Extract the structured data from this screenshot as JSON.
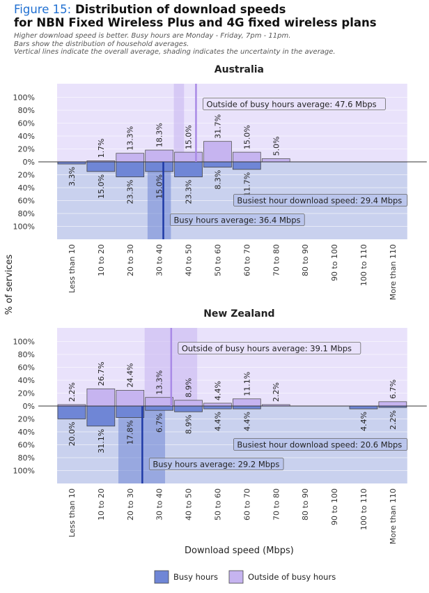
{
  "header": {
    "figure_label": "Figure 15:",
    "title_line1": "Distribution of download speeds",
    "title_line2": "for NBN Fixed Wireless Plus and 4G fixed wireless plans",
    "subtitle_lines": [
      "Higher download speed is better. Busy hours are Monday - Friday, 7pm - 11pm.",
      "Bars show the distribution of household averages.",
      "Vertical lines indicate the overall average, shading indicates the uncertainty in the average."
    ]
  },
  "colors": {
    "busy": "#6f86d6",
    "outside": "#c6b4f0",
    "busy_shade": "#c9d1ee",
    "outside_shade": "#e9e2fb",
    "busy_line": "#1f3aa6",
    "outside_line": "#a98ae6"
  },
  "chart_data": {
    "type": "bar",
    "xlabel": "Download speed (Mbps)",
    "ylabel": "% of services",
    "categories": [
      "Less than 10",
      "10 to 20",
      "20 to 30",
      "30 to 40",
      "40 to 50",
      "50 to 60",
      "60 to 70",
      "70 to 80",
      "80 to 90",
      "90 to 100",
      "100 to 110",
      "More than 110"
    ],
    "y_tick_labels": [
      "100%",
      "80%",
      "60%",
      "40%",
      "20%",
      "0%",
      "20%",
      "40%",
      "60%",
      "80%",
      "100%"
    ],
    "legend": [
      {
        "key": "busy",
        "label": "Busy hours"
      },
      {
        "key": "outside",
        "label": "Outside of busy hours"
      }
    ],
    "legend_position": "bottom",
    "panels": [
      {
        "title": "Australia",
        "outside": [
          null,
          1.7,
          13.3,
          18.3,
          15.0,
          31.7,
          15.0,
          5.0,
          null,
          null,
          null,
          null
        ],
        "busy": [
          3.3,
          15.0,
          23.3,
          15.0,
          23.3,
          8.3,
          11.7,
          null,
          null,
          null,
          null,
          null
        ],
        "outside_labels": [
          "",
          "1.7%",
          "13.3%",
          "18.3%",
          "15.0%",
          "31.7%",
          "15.0%",
          "5.0%",
          "",
          "",
          "",
          ""
        ],
        "busy_labels": [
          "3.3%",
          "15.0%",
          "23.3%",
          "15.0%",
          "23.3%",
          "8.3%",
          "11.7%",
          "",
          "",
          "",
          "",
          ""
        ],
        "outside_avg": 47.6,
        "outside_avg_band": [
          40,
          43.5
        ],
        "busy_avg": 36.4,
        "busy_avg_band": [
          31,
          39
        ],
        "outside_avg_label": "Outside of busy hours average: 47.6 Mbps",
        "busy_avg_label": "Busy hours average: 36.4 Mbps",
        "busiest_hour_label": "Busiest hour download speed: 29.4 Mbps"
      },
      {
        "title": "New Zealand",
        "outside": [
          2.2,
          26.7,
          24.4,
          13.3,
          8.9,
          4.4,
          11.1,
          2.2,
          null,
          null,
          null,
          6.7
        ],
        "busy": [
          20.0,
          31.1,
          17.8,
          6.7,
          8.9,
          4.4,
          4.4,
          null,
          null,
          null,
          4.4,
          2.2
        ],
        "outside_labels": [
          "2.2%",
          "26.7%",
          "24.4%",
          "13.3%",
          "8.9%",
          "4.4%",
          "11.1%",
          "2.2%",
          "",
          "",
          "",
          "6.7%"
        ],
        "busy_labels": [
          "20.0%",
          "31.1%",
          "17.8%",
          "6.7%",
          "8.9%",
          "4.4%",
          "4.4%",
          "",
          "",
          "",
          "4.4%",
          "2.2%"
        ],
        "outside_avg": 39.1,
        "outside_avg_band": [
          30,
          48
        ],
        "busy_avg": 29.2,
        "busy_avg_band": [
          21,
          37
        ],
        "outside_avg_label": "Outside of busy hours average: 39.1 Mbps",
        "busy_avg_label": "Busy hours average: 29.2 Mbps",
        "busiest_hour_label": "Busiest hour download speed: 20.6 Mbps"
      }
    ]
  }
}
